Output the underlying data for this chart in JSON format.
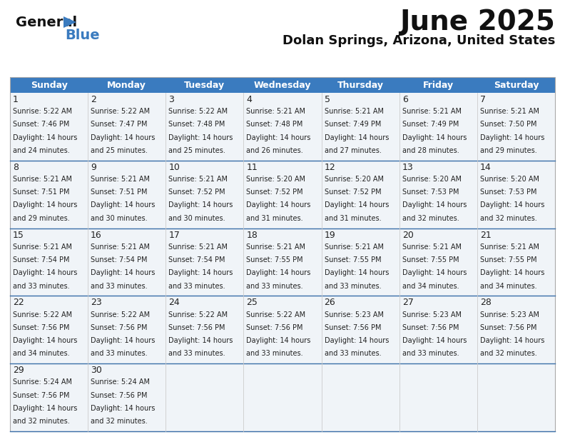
{
  "title": "June 2025",
  "subtitle": "Dolan Springs, Arizona, United States",
  "header_bg": "#3a7bbf",
  "header_text_color": "#ffffff",
  "cell_bg": "#f0f4f8",
  "cell_bg_empty": "#e8ecf0",
  "border_color": "#9ab0cc",
  "grid_line_color": "#3a7bbf",
  "days_of_week": [
    "Sunday",
    "Monday",
    "Tuesday",
    "Wednesday",
    "Thursday",
    "Friday",
    "Saturday"
  ],
  "weeks": [
    [
      {
        "day": 1,
        "sunrise": "5:22 AM",
        "sunset": "7:46 PM",
        "daylight": "14 hours\nand 24 minutes."
      },
      {
        "day": 2,
        "sunrise": "5:22 AM",
        "sunset": "7:47 PM",
        "daylight": "14 hours\nand 25 minutes."
      },
      {
        "day": 3,
        "sunrise": "5:22 AM",
        "sunset": "7:48 PM",
        "daylight": "14 hours\nand 25 minutes."
      },
      {
        "day": 4,
        "sunrise": "5:21 AM",
        "sunset": "7:48 PM",
        "daylight": "14 hours\nand 26 minutes."
      },
      {
        "day": 5,
        "sunrise": "5:21 AM",
        "sunset": "7:49 PM",
        "daylight": "14 hours\nand 27 minutes."
      },
      {
        "day": 6,
        "sunrise": "5:21 AM",
        "sunset": "7:49 PM",
        "daylight": "14 hours\nand 28 minutes."
      },
      {
        "day": 7,
        "sunrise": "5:21 AM",
        "sunset": "7:50 PM",
        "daylight": "14 hours\nand 29 minutes."
      }
    ],
    [
      {
        "day": 8,
        "sunrise": "5:21 AM",
        "sunset": "7:51 PM",
        "daylight": "14 hours\nand 29 minutes."
      },
      {
        "day": 9,
        "sunrise": "5:21 AM",
        "sunset": "7:51 PM",
        "daylight": "14 hours\nand 30 minutes."
      },
      {
        "day": 10,
        "sunrise": "5:21 AM",
        "sunset": "7:52 PM",
        "daylight": "14 hours\nand 30 minutes."
      },
      {
        "day": 11,
        "sunrise": "5:20 AM",
        "sunset": "7:52 PM",
        "daylight": "14 hours\nand 31 minutes."
      },
      {
        "day": 12,
        "sunrise": "5:20 AM",
        "sunset": "7:52 PM",
        "daylight": "14 hours\nand 31 minutes."
      },
      {
        "day": 13,
        "sunrise": "5:20 AM",
        "sunset": "7:53 PM",
        "daylight": "14 hours\nand 32 minutes."
      },
      {
        "day": 14,
        "sunrise": "5:20 AM",
        "sunset": "7:53 PM",
        "daylight": "14 hours\nand 32 minutes."
      }
    ],
    [
      {
        "day": 15,
        "sunrise": "5:21 AM",
        "sunset": "7:54 PM",
        "daylight": "14 hours\nand 33 minutes."
      },
      {
        "day": 16,
        "sunrise": "5:21 AM",
        "sunset": "7:54 PM",
        "daylight": "14 hours\nand 33 minutes."
      },
      {
        "day": 17,
        "sunrise": "5:21 AM",
        "sunset": "7:54 PM",
        "daylight": "14 hours\nand 33 minutes."
      },
      {
        "day": 18,
        "sunrise": "5:21 AM",
        "sunset": "7:55 PM",
        "daylight": "14 hours\nand 33 minutes."
      },
      {
        "day": 19,
        "sunrise": "5:21 AM",
        "sunset": "7:55 PM",
        "daylight": "14 hours\nand 33 minutes."
      },
      {
        "day": 20,
        "sunrise": "5:21 AM",
        "sunset": "7:55 PM",
        "daylight": "14 hours\nand 34 minutes."
      },
      {
        "day": 21,
        "sunrise": "5:21 AM",
        "sunset": "7:55 PM",
        "daylight": "14 hours\nand 34 minutes."
      }
    ],
    [
      {
        "day": 22,
        "sunrise": "5:22 AM",
        "sunset": "7:56 PM",
        "daylight": "14 hours\nand 34 minutes."
      },
      {
        "day": 23,
        "sunrise": "5:22 AM",
        "sunset": "7:56 PM",
        "daylight": "14 hours\nand 33 minutes."
      },
      {
        "day": 24,
        "sunrise": "5:22 AM",
        "sunset": "7:56 PM",
        "daylight": "14 hours\nand 33 minutes."
      },
      {
        "day": 25,
        "sunrise": "5:22 AM",
        "sunset": "7:56 PM",
        "daylight": "14 hours\nand 33 minutes."
      },
      {
        "day": 26,
        "sunrise": "5:23 AM",
        "sunset": "7:56 PM",
        "daylight": "14 hours\nand 33 minutes."
      },
      {
        "day": 27,
        "sunrise": "5:23 AM",
        "sunset": "7:56 PM",
        "daylight": "14 hours\nand 33 minutes."
      },
      {
        "day": 28,
        "sunrise": "5:23 AM",
        "sunset": "7:56 PM",
        "daylight": "14 hours\nand 32 minutes."
      }
    ],
    [
      {
        "day": 29,
        "sunrise": "5:24 AM",
        "sunset": "7:56 PM",
        "daylight": "14 hours\nand 32 minutes."
      },
      {
        "day": 30,
        "sunrise": "5:24 AM",
        "sunset": "7:56 PM",
        "daylight": "14 hours\nand 32 minutes."
      },
      null,
      null,
      null,
      null,
      null
    ]
  ],
  "logo_color_general": "#111111",
  "logo_color_blue": "#3a7bbf",
  "logo_triangle_color": "#3a7bbf",
  "title_fontsize": 28,
  "subtitle_fontsize": 13,
  "header_fontsize": 9,
  "day_num_fontsize": 9,
  "cell_text_fontsize": 7
}
